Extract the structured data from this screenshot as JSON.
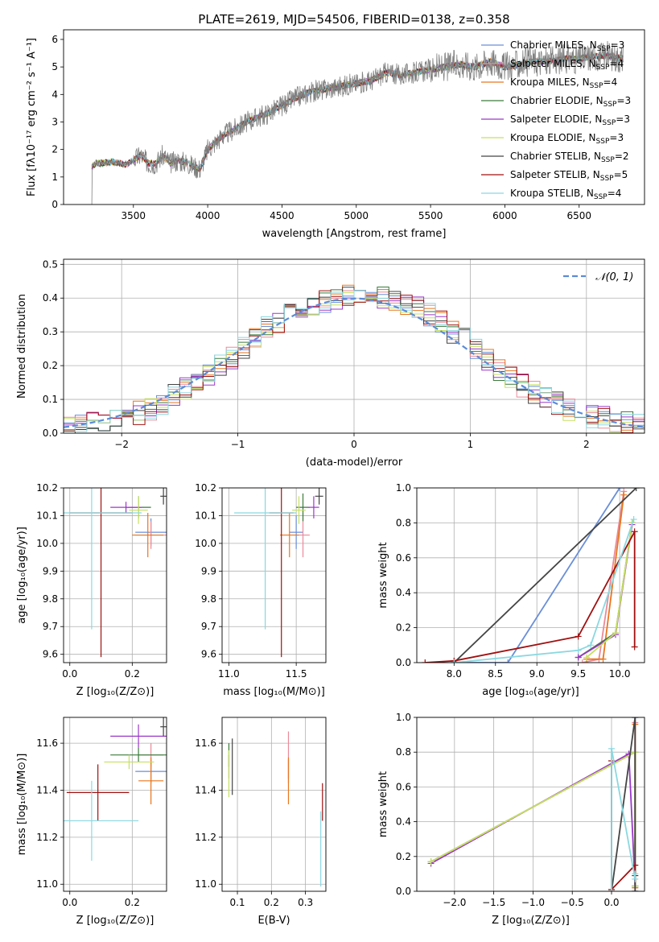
{
  "figure": {
    "title": "PLATE=2619, MJD=54506, FIBERID=0138, z=0.358"
  },
  "colors": {
    "Chabrier MILES": "#6a8fd8",
    "Salpeter MILES": "#ea8a9a",
    "Kroupa MILES": "#e8761f",
    "Chabrier ELODIE": "#3a7a3a",
    "Salpeter ELODIE": "#9b38c8",
    "Kroupa ELODIE": "#c6e060",
    "Chabrier STELIB": "#444444",
    "Salpeter STELIB": "#a01010",
    "Kroupa STELIB": "#8ad8e0"
  },
  "chart_data": [
    {
      "id": "spectrum",
      "type": "line",
      "title": "PLATE=2619, MJD=54506, FIBERID=0138, z=0.358",
      "xlabel": "wavelength [Angstrom, rest frame]",
      "ylabel": "Flux [fλ10⁻¹⁷ erg cm⁻² s⁻¹ A⁻¹]",
      "xlim": [
        3030,
        6940
      ],
      "ylim": [
        0,
        6.35
      ],
      "xticks": [
        3500,
        4000,
        4500,
        5000,
        5500,
        6000,
        6500
      ],
      "yticks": [
        0,
        1,
        2,
        3,
        4,
        5,
        6
      ],
      "grid": false,
      "legend": "top-right",
      "data_series": {
        "name": "data",
        "color": "#808080",
        "x": [
          3220,
          3250,
          3300,
          3350,
          3400,
          3450,
          3500,
          3550,
          3600,
          3650,
          3700,
          3750,
          3800,
          3850,
          3900,
          3950,
          4000,
          4100,
          4200,
          4300,
          4400,
          4500,
          4600,
          4700,
          4800,
          4900,
          5000,
          5100,
          5200,
          5300,
          5400,
          5500,
          5600,
          5700,
          5800,
          5900,
          6000,
          6100,
          6200,
          6300,
          6400,
          6500,
          6600,
          6700,
          6800
        ],
        "y": [
          1.4,
          1.5,
          1.5,
          1.55,
          1.5,
          1.45,
          1.6,
          1.8,
          1.5,
          1.5,
          1.8,
          1.5,
          1.6,
          1.55,
          1.4,
          1.3,
          2.0,
          2.5,
          2.8,
          3.1,
          3.3,
          3.6,
          3.9,
          4.1,
          4.2,
          4.3,
          4.4,
          4.5,
          4.8,
          4.7,
          4.8,
          4.9,
          5.0,
          5.1,
          5.0,
          5.2,
          5.0,
          5.1,
          5.2,
          5.2,
          5.3,
          5.3,
          5.4,
          5.4,
          5.3
        ]
      },
      "legend_entries": [
        {
          "label": "Chabrier MILES, N",
          "sub": "SSP",
          "suffix": "=3"
        },
        {
          "label": "Salpeter MILES, N",
          "sub": "SSP",
          "suffix": "=4"
        },
        {
          "label": "Kroupa MILES, N",
          "sub": "SSP",
          "suffix": "=4"
        },
        {
          "label": "Chabrier ELODIE, N",
          "sub": "SSP",
          "suffix": "=3"
        },
        {
          "label": "Salpeter ELODIE, N",
          "sub": "SSP",
          "suffix": "=3"
        },
        {
          "label": "Kroupa ELODIE, N",
          "sub": "SSP",
          "suffix": "=3"
        },
        {
          "label": "Chabrier STELIB, N",
          "sub": "SSP",
          "suffix": "=2"
        },
        {
          "label": "Salpeter STELIB, N",
          "sub": "SSP",
          "suffix": "=5"
        },
        {
          "label": "Kroupa STELIB, N",
          "sub": "SSP",
          "suffix": "=4"
        }
      ]
    },
    {
      "id": "residuals",
      "type": "line",
      "xlabel": "(data-model)/error",
      "ylabel": "Normed distribution",
      "xlim": [
        -2.5,
        2.5
      ],
      "ylim": [
        0,
        0.515
      ],
      "xticks": [
        -2,
        -1,
        0,
        1,
        2
      ],
      "yticks": [
        0.0,
        0.1,
        0.2,
        0.3,
        0.4,
        0.5
      ],
      "grid": true,
      "legend": "top-right",
      "normal_label": "𝒩(0, 1)",
      "normal_color": "#5b8bd8",
      "bin_edges_start": -2.5,
      "bin_width": 0.1,
      "histogram_base": [
        0.02,
        0.025,
        0.03,
        0.035,
        0.04,
        0.05,
        0.06,
        0.07,
        0.09,
        0.11,
        0.13,
        0.15,
        0.17,
        0.2,
        0.22,
        0.25,
        0.28,
        0.31,
        0.33,
        0.35,
        0.37,
        0.38,
        0.39,
        0.4,
        0.41,
        0.42,
        0.41,
        0.4,
        0.39,
        0.38,
        0.37,
        0.35,
        0.33,
        0.3,
        0.28,
        0.25,
        0.22,
        0.19,
        0.17,
        0.14,
        0.12,
        0.1,
        0.09,
        0.07,
        0.06,
        0.05,
        0.045,
        0.035,
        0.03,
        0.025
      ]
    },
    {
      "id": "age_vs_Z",
      "type": "scatter",
      "xlabel": "Z [log₁₀(Z/Z⊙)]",
      "ylabel": "age [log₁₀(age/yr)]",
      "xlim": [
        -0.02,
        0.31
      ],
      "ylim": [
        9.57,
        10.2
      ],
      "xticks": [
        0.0,
        0.2
      ],
      "yticks": [
        9.6,
        9.7,
        9.8,
        9.9,
        10.0,
        10.1,
        10.2
      ],
      "grid": true,
      "points": [
        {
          "series": "Chabrier MILES",
          "x": 0.26,
          "y": 10.04,
          "xerr": 0.05,
          "yerr": 0.05
        },
        {
          "series": "Salpeter MILES",
          "x": 0.26,
          "y": 10.03,
          "xerr": 0.05,
          "yerr": 0.05
        },
        {
          "series": "Kroupa MILES",
          "x": 0.25,
          "y": 10.03,
          "xerr": 0.05,
          "yerr": 0.08
        },
        {
          "series": "Chabrier ELODIE",
          "x": 0.22,
          "y": 10.13,
          "xerr": 0.04,
          "yerr": 0.04
        },
        {
          "series": "Salpeter ELODIE",
          "x": 0.18,
          "y": 10.13,
          "xerr": 0.05,
          "yerr": 0.02
        },
        {
          "series": "Kroupa ELODIE",
          "x": 0.22,
          "y": 10.12,
          "xerr": 0.03,
          "yerr": 0.05
        },
        {
          "series": "Chabrier STELIB",
          "x": 0.3,
          "y": 10.17,
          "xerr": 0.01,
          "yerr": 0.03
        },
        {
          "series": "Salpeter STELIB",
          "x": 0.1,
          "y": 10.11,
          "xerr": 0.1,
          "yerr": 0.52
        },
        {
          "series": "Kroupa STELIB",
          "x": 0.07,
          "y": 10.11,
          "xerr": 0.16,
          "yerr": 0.42
        }
      ]
    },
    {
      "id": "age_vs_mass",
      "type": "scatter",
      "xlabel": "mass [log₁₀(M/M⊙)]",
      "ylabel": "",
      "xlim": [
        10.95,
        11.72
      ],
      "ylim": [
        9.57,
        10.2
      ],
      "xticks": [
        11.0,
        11.5
      ],
      "yticks": [
        9.6,
        9.7,
        9.8,
        9.9,
        10.0,
        10.1,
        10.2
      ],
      "grid": true,
      "points": [
        {
          "series": "Chabrier MILES",
          "x": 11.5,
          "y": 10.04,
          "xerr": 0.05,
          "yerr": 0.06
        },
        {
          "series": "Salpeter MILES",
          "x": 11.55,
          "y": 10.03,
          "xerr": 0.05,
          "yerr": 0.08
        },
        {
          "series": "Kroupa MILES",
          "x": 11.45,
          "y": 10.03,
          "xerr": 0.07,
          "yerr": 0.08
        },
        {
          "series": "Chabrier ELODIE",
          "x": 11.55,
          "y": 10.13,
          "xerr": 0.05,
          "yerr": 0.05
        },
        {
          "series": "Salpeter ELODIE",
          "x": 11.63,
          "y": 10.13,
          "xerr": 0.04,
          "yerr": 0.04
        },
        {
          "series": "Kroupa ELODIE",
          "x": 11.52,
          "y": 10.12,
          "xerr": 0.05,
          "yerr": 0.05
        },
        {
          "series": "Chabrier STELIB",
          "x": 11.67,
          "y": 10.17,
          "xerr": 0.03,
          "yerr": 0.03
        },
        {
          "series": "Salpeter STELIB",
          "x": 11.39,
          "y": 10.11,
          "xerr": 0.09,
          "yerr": 0.52
        },
        {
          "series": "Kroupa STELIB",
          "x": 11.27,
          "y": 10.11,
          "xerr": 0.23,
          "yerr": 0.42
        }
      ]
    },
    {
      "id": "weight_vs_age",
      "type": "line",
      "xlabel": "age [log₁₀(age/yr)]",
      "ylabel": "mass weight",
      "xlim": [
        7.55,
        10.3
      ],
      "ylim": [
        0,
        1.0
      ],
      "xticks": [
        8.0,
        8.5,
        9.0,
        9.5,
        10.0
      ],
      "yticks": [
        0.0,
        0.2,
        0.4,
        0.6,
        0.8,
        1.0
      ],
      "grid": true,
      "series": [
        {
          "name": "Chabrier MILES",
          "x": [
            8.0,
            8.65,
            10.0
          ],
          "y": [
            0.0,
            0.0,
            1.0
          ]
        },
        {
          "name": "Salpeter MILES",
          "x": [
            9.55,
            9.75,
            10.05
          ],
          "y": [
            0.0,
            0.02,
            0.98
          ]
        },
        {
          "name": "Kroupa MILES",
          "x": [
            9.6,
            9.8,
            10.05
          ],
          "y": [
            0.02,
            0.02,
            0.96
          ]
        },
        {
          "name": "Chabrier ELODIE",
          "x": [
            9.5,
            9.95,
            10.15
          ],
          "y": [
            0.03,
            0.17,
            0.8
          ]
        },
        {
          "name": "Salpeter ELODIE",
          "x": [
            9.5,
            9.95,
            10.15
          ],
          "y": [
            0.03,
            0.16,
            0.79
          ]
        },
        {
          "name": "Kroupa ELODIE",
          "x": [
            9.6,
            9.95,
            10.15
          ],
          "y": [
            0.03,
            0.17,
            0.8
          ]
        },
        {
          "name": "Chabrier STELIB",
          "x": [
            8.0,
            10.2
          ],
          "y": [
            0.0,
            1.0
          ]
        },
        {
          "name": "Salpeter STELIB",
          "x": [
            7.65,
            8.0,
            9.5,
            10.18,
            10.18
          ],
          "y": [
            0.0,
            0.01,
            0.15,
            0.75,
            0.09
          ]
        },
        {
          "name": "Kroupa STELIB",
          "x": [
            8.0,
            9.5,
            9.65,
            10.17
          ],
          "y": [
            0.0,
            0.07,
            0.1,
            0.82
          ]
        }
      ]
    },
    {
      "id": "mass_vs_Z",
      "type": "scatter",
      "xlabel": "Z [log₁₀(Z/Z⊙)]",
      "ylabel": "mass [log₁₀(M/M⊙)]",
      "xlim": [
        -0.02,
        0.31
      ],
      "ylim": [
        10.97,
        11.71
      ],
      "xticks": [
        0.0,
        0.2
      ],
      "yticks": [
        11.0,
        11.2,
        11.4,
        11.6
      ],
      "grid": true,
      "points": [
        {
          "series": "Chabrier MILES",
          "x": 0.26,
          "y": 11.48,
          "xerr": 0.05,
          "yerr": 0.05
        },
        {
          "series": "Salpeter MILES",
          "x": 0.26,
          "y": 11.55,
          "xerr": 0.04,
          "yerr": 0.05
        },
        {
          "series": "Kroupa MILES",
          "x": 0.26,
          "y": 11.44,
          "xerr": 0.04,
          "yerr": 0.1
        },
        {
          "series": "Chabrier ELODIE",
          "x": 0.22,
          "y": 11.55,
          "xerr": 0.09,
          "yerr": 0.03
        },
        {
          "series": "Salpeter ELODIE",
          "x": 0.22,
          "y": 11.63,
          "xerr": 0.09,
          "yerr": 0.05
        },
        {
          "series": "Kroupa ELODIE",
          "x": 0.19,
          "y": 11.52,
          "xerr": 0.08,
          "yerr": 0.03
        },
        {
          "series": "Chabrier STELIB",
          "x": 0.3,
          "y": 11.67,
          "xerr": 0.01,
          "yerr": 0.04
        },
        {
          "series": "Salpeter STELIB",
          "x": 0.09,
          "y": 11.39,
          "xerr": 0.1,
          "yerr": 0.12
        },
        {
          "series": "Kroupa STELIB",
          "x": 0.07,
          "y": 11.27,
          "xerr": 0.15,
          "yerr": 0.17
        }
      ]
    },
    {
      "id": "mass_vs_ebv",
      "type": "scatter",
      "xlabel": "E(B-V)",
      "ylabel": "",
      "xlim": [
        0.055,
        0.36
      ],
      "ylim": [
        10.97,
        11.71
      ],
      "xticks": [
        0.1,
        0.2,
        0.3
      ],
      "yticks": [
        11.0,
        11.2,
        11.4,
        11.6
      ],
      "grid": true,
      "points": [
        {
          "series": "Chabrier MILES",
          "x": 0.25,
          "y": 11.48,
          "xerr": 0.0,
          "yerr": 0.05
        },
        {
          "series": "Salpeter MILES",
          "x": 0.25,
          "y": 11.55,
          "xerr": 0.0,
          "yerr": 0.1
        },
        {
          "series": "Kroupa MILES",
          "x": 0.25,
          "y": 11.44,
          "xerr": 0.0,
          "yerr": 0.1
        },
        {
          "series": "Chabrier ELODIE",
          "x": 0.075,
          "y": 11.55,
          "xerr": 0.0,
          "yerr": 0.05
        },
        {
          "series": "Salpeter ELODIE",
          "x": 0.075,
          "y": 11.5,
          "xerr": 0.0,
          "yerr": 0.05
        },
        {
          "series": "Kroupa ELODIE",
          "x": 0.075,
          "y": 11.47,
          "xerr": 0.0,
          "yerr": 0.1
        },
        {
          "series": "Chabrier STELIB",
          "x": 0.085,
          "y": 11.5,
          "xerr": 0.0,
          "yerr": 0.12
        },
        {
          "series": "Salpeter STELIB",
          "x": 0.35,
          "y": 11.35,
          "xerr": 0.0,
          "yerr": 0.08
        },
        {
          "series": "Kroupa STELIB",
          "x": 0.345,
          "y": 11.15,
          "xerr": 0.0,
          "yerr": 0.16
        }
      ]
    },
    {
      "id": "weight_vs_Z",
      "type": "line",
      "xlabel": "Z [log₁₀(Z/Z⊙)]",
      "ylabel": "mass weight",
      "xlim": [
        -2.48,
        0.42
      ],
      "ylim": [
        0,
        1.0
      ],
      "xticks": [
        -2.0,
        -1.5,
        -1.0,
        -0.5,
        0.0
      ],
      "yticks": [
        0.0,
        0.2,
        0.4,
        0.6,
        0.8,
        1.0
      ],
      "grid": true,
      "series": [
        {
          "name": "Chabrier MILES",
          "x": [
            0.3,
            0.3
          ],
          "y": [
            0.0,
            1.0
          ]
        },
        {
          "name": "Salpeter MILES",
          "x": [
            0.3,
            0.3
          ],
          "y": [
            0.02,
            0.97
          ]
        },
        {
          "name": "Kroupa MILES",
          "x": [
            0.3,
            0.3
          ],
          "y": [
            0.02,
            0.96
          ]
        },
        {
          "name": "Chabrier ELODIE",
          "x": [
            -2.3,
            0.3,
            0.3
          ],
          "y": [
            0.17,
            0.8,
            0.03
          ]
        },
        {
          "name": "Salpeter ELODIE",
          "x": [
            -2.3,
            0.22,
            0.3
          ],
          "y": [
            0.16,
            0.79,
            0.03
          ]
        },
        {
          "name": "Kroupa ELODIE",
          "x": [
            -2.3,
            0.3,
            0.3
          ],
          "y": [
            0.17,
            0.8,
            0.03
          ]
        },
        {
          "name": "Chabrier STELIB",
          "x": [
            0.0,
            0.3,
            0.3
          ],
          "y": [
            0.0,
            1.0,
            0.0
          ]
        },
        {
          "name": "Salpeter STELIB",
          "x": [
            0.0,
            0.0,
            0.3,
            0.3
          ],
          "y": [
            0.75,
            0.01,
            0.15,
            0.09
          ]
        },
        {
          "name": "Kroupa STELIB",
          "x": [
            0.0,
            0.0,
            0.3,
            0.3
          ],
          "y": [
            0.0,
            0.82,
            0.07,
            0.1
          ]
        }
      ]
    }
  ]
}
